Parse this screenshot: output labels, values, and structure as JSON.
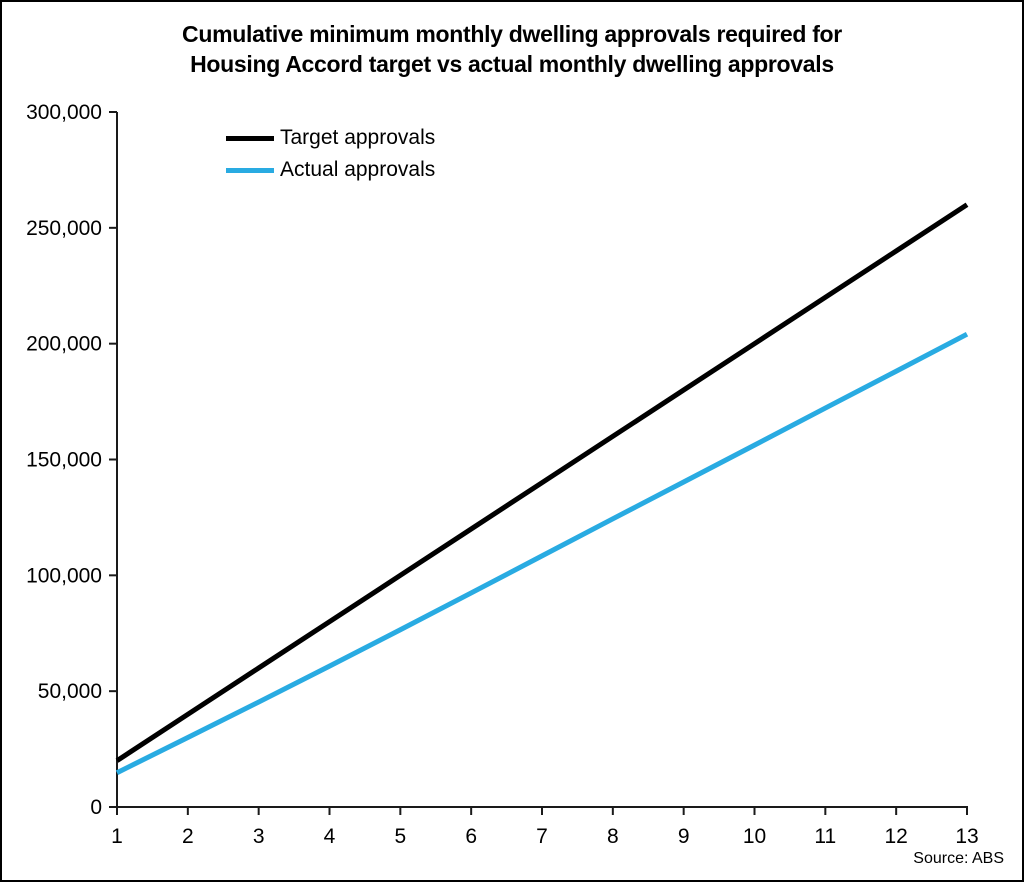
{
  "page": {
    "title_line1": "Cumulative minimum monthly dwelling approvals required for",
    "title_line2": "Housing Accord target vs actual monthly dwelling approvals",
    "source_note": "Source: ABS"
  },
  "chart_data": {
    "type": "line",
    "title": "Cumulative minimum monthly dwelling approvals required for Housing Accord target vs actual monthly dwelling approvals",
    "xlabel": "",
    "ylabel": "",
    "x": [
      1,
      2,
      3,
      4,
      5,
      6,
      7,
      8,
      9,
      10,
      11,
      12,
      13
    ],
    "x_tick_labels": [
      "1",
      "2",
      "3",
      "4",
      "5",
      "6",
      "7",
      "8",
      "9",
      "10",
      "11",
      "12",
      "13"
    ],
    "ylim": [
      0,
      300000
    ],
    "y_ticks": [
      0,
      50000,
      100000,
      150000,
      200000,
      250000,
      300000
    ],
    "y_tick_labels": [
      "0",
      "50,000",
      "100,000",
      "150,000",
      "200,000",
      "250,000",
      "300,000"
    ],
    "grid": false,
    "legend_position": "top-left",
    "axis_color": "#1a1a1a",
    "series": [
      {
        "name": "Target approvals",
        "color": "#000000",
        "values": [
          20000,
          40000,
          60000,
          80000,
          100000,
          120000,
          140000,
          160000,
          180000,
          200000,
          220000,
          240000,
          260000
        ]
      },
      {
        "name": "Actual approvals",
        "color": "#29abe2",
        "values": [
          14800,
          30000,
          45300,
          60800,
          76500,
          92400,
          108400,
          124400,
          140300,
          156200,
          172200,
          188100,
          204100
        ]
      }
    ],
    "source": "Source: ABS"
  }
}
